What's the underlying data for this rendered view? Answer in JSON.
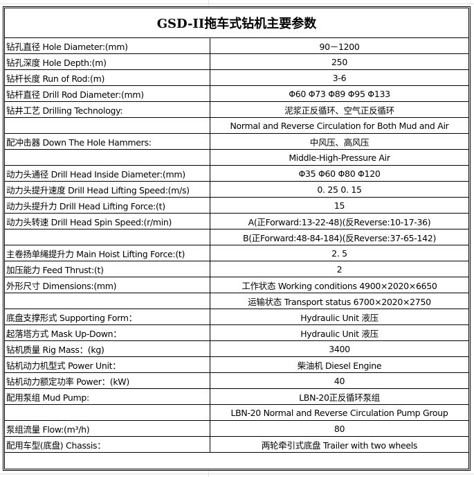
{
  "title": "GSD-II拖车式钻机主要参数",
  "rows": [
    {
      "label": "钻孔直径  Hole Diameter:(mm)",
      "value": "90－1200"
    },
    {
      "label": "钻孔深度  Hole Depth:(m)",
      "value": "250"
    },
    {
      "label": "钻杆长度  Run of Rod:(m)",
      "value": "3-6"
    },
    {
      "label": "钻杆直径  Drill Rod Diameter:(mm)",
      "value": "Φ60  Φ73  Φ89  Φ95  Φ133"
    },
    {
      "label": "钻井工艺  Drilling Technology:",
      "value": "泥浆正反循环、空气正反循环"
    },
    {
      "label": "",
      "value": "Normal and Reverse Circulation for Both Mud and Air"
    },
    {
      "label": "配冲击器 Down The Hole Hammers:",
      "value": "中风压、高风压"
    },
    {
      "label": "",
      "value": "Middle-High-Pressure Air"
    },
    {
      "label": "动力头通径 Drill Head Inside Diameter:(mm)",
      "value": "Φ35  Φ60  Φ80  Φ120"
    },
    {
      "label": "动力头提升速度 Drill Head Lifting Speed:(m/s)",
      "value": "0. 25     0. 15"
    },
    {
      "label": "动力头提升力 Drill Head Lifting Force:(t)",
      "value": "15"
    },
    {
      "label": "动力头转速  Drill Head Spin Speed:(r/min)",
      "value": "A(正Forward:13-22-48)(反Reverse:10-17-36)"
    },
    {
      "label": "",
      "value": "B(正Forward:48-84-184)(反Reverse:37-65-142)"
    },
    {
      "label": "主卷扬单绳提升力  Main Hoist Lifting Force:(t)",
      "value": "2. 5"
    },
    {
      "label": "加压能力  Feed Thrust:(t)",
      "value": "2"
    },
    {
      "label": "外形尺寸  Dimensions:(mm)",
      "value": "工作状态  Working conditions  4900×2020×6650"
    },
    {
      "label": "",
      "value": "运输状态  Transport status     6700×2020×2750"
    },
    {
      "label": "底盘支撑形式  Supporting Form：",
      "value": "Hydraulic Unit  液压"
    },
    {
      "label": "起落塔方式  Mask Up-Down：",
      "value": "Hydraulic Unit  液压"
    },
    {
      "label": "钻机质量  Rig Mass：(kg)",
      "value": "3400"
    },
    {
      "label": "钻机动力机型式  Power Unit：",
      "value": "柴油机  Diesel Engine"
    },
    {
      "label": "钻机动力额定功率 Power：(kW)",
      "value": "40"
    },
    {
      "label": "配用泵组 Mud Pump:",
      "value": "LBN-20正反循环泵组"
    },
    {
      "label": "",
      "value": "LBN-20 Normal and Reverse Circulation Pump Group"
    },
    {
      "label": "泵组流量  Flow:(m³/h)",
      "value": "80"
    },
    {
      "label": "配用车型(底盘)  Chassis：",
      "value": "两轮牵引式底盘  Trailer with two wheels"
    }
  ]
}
